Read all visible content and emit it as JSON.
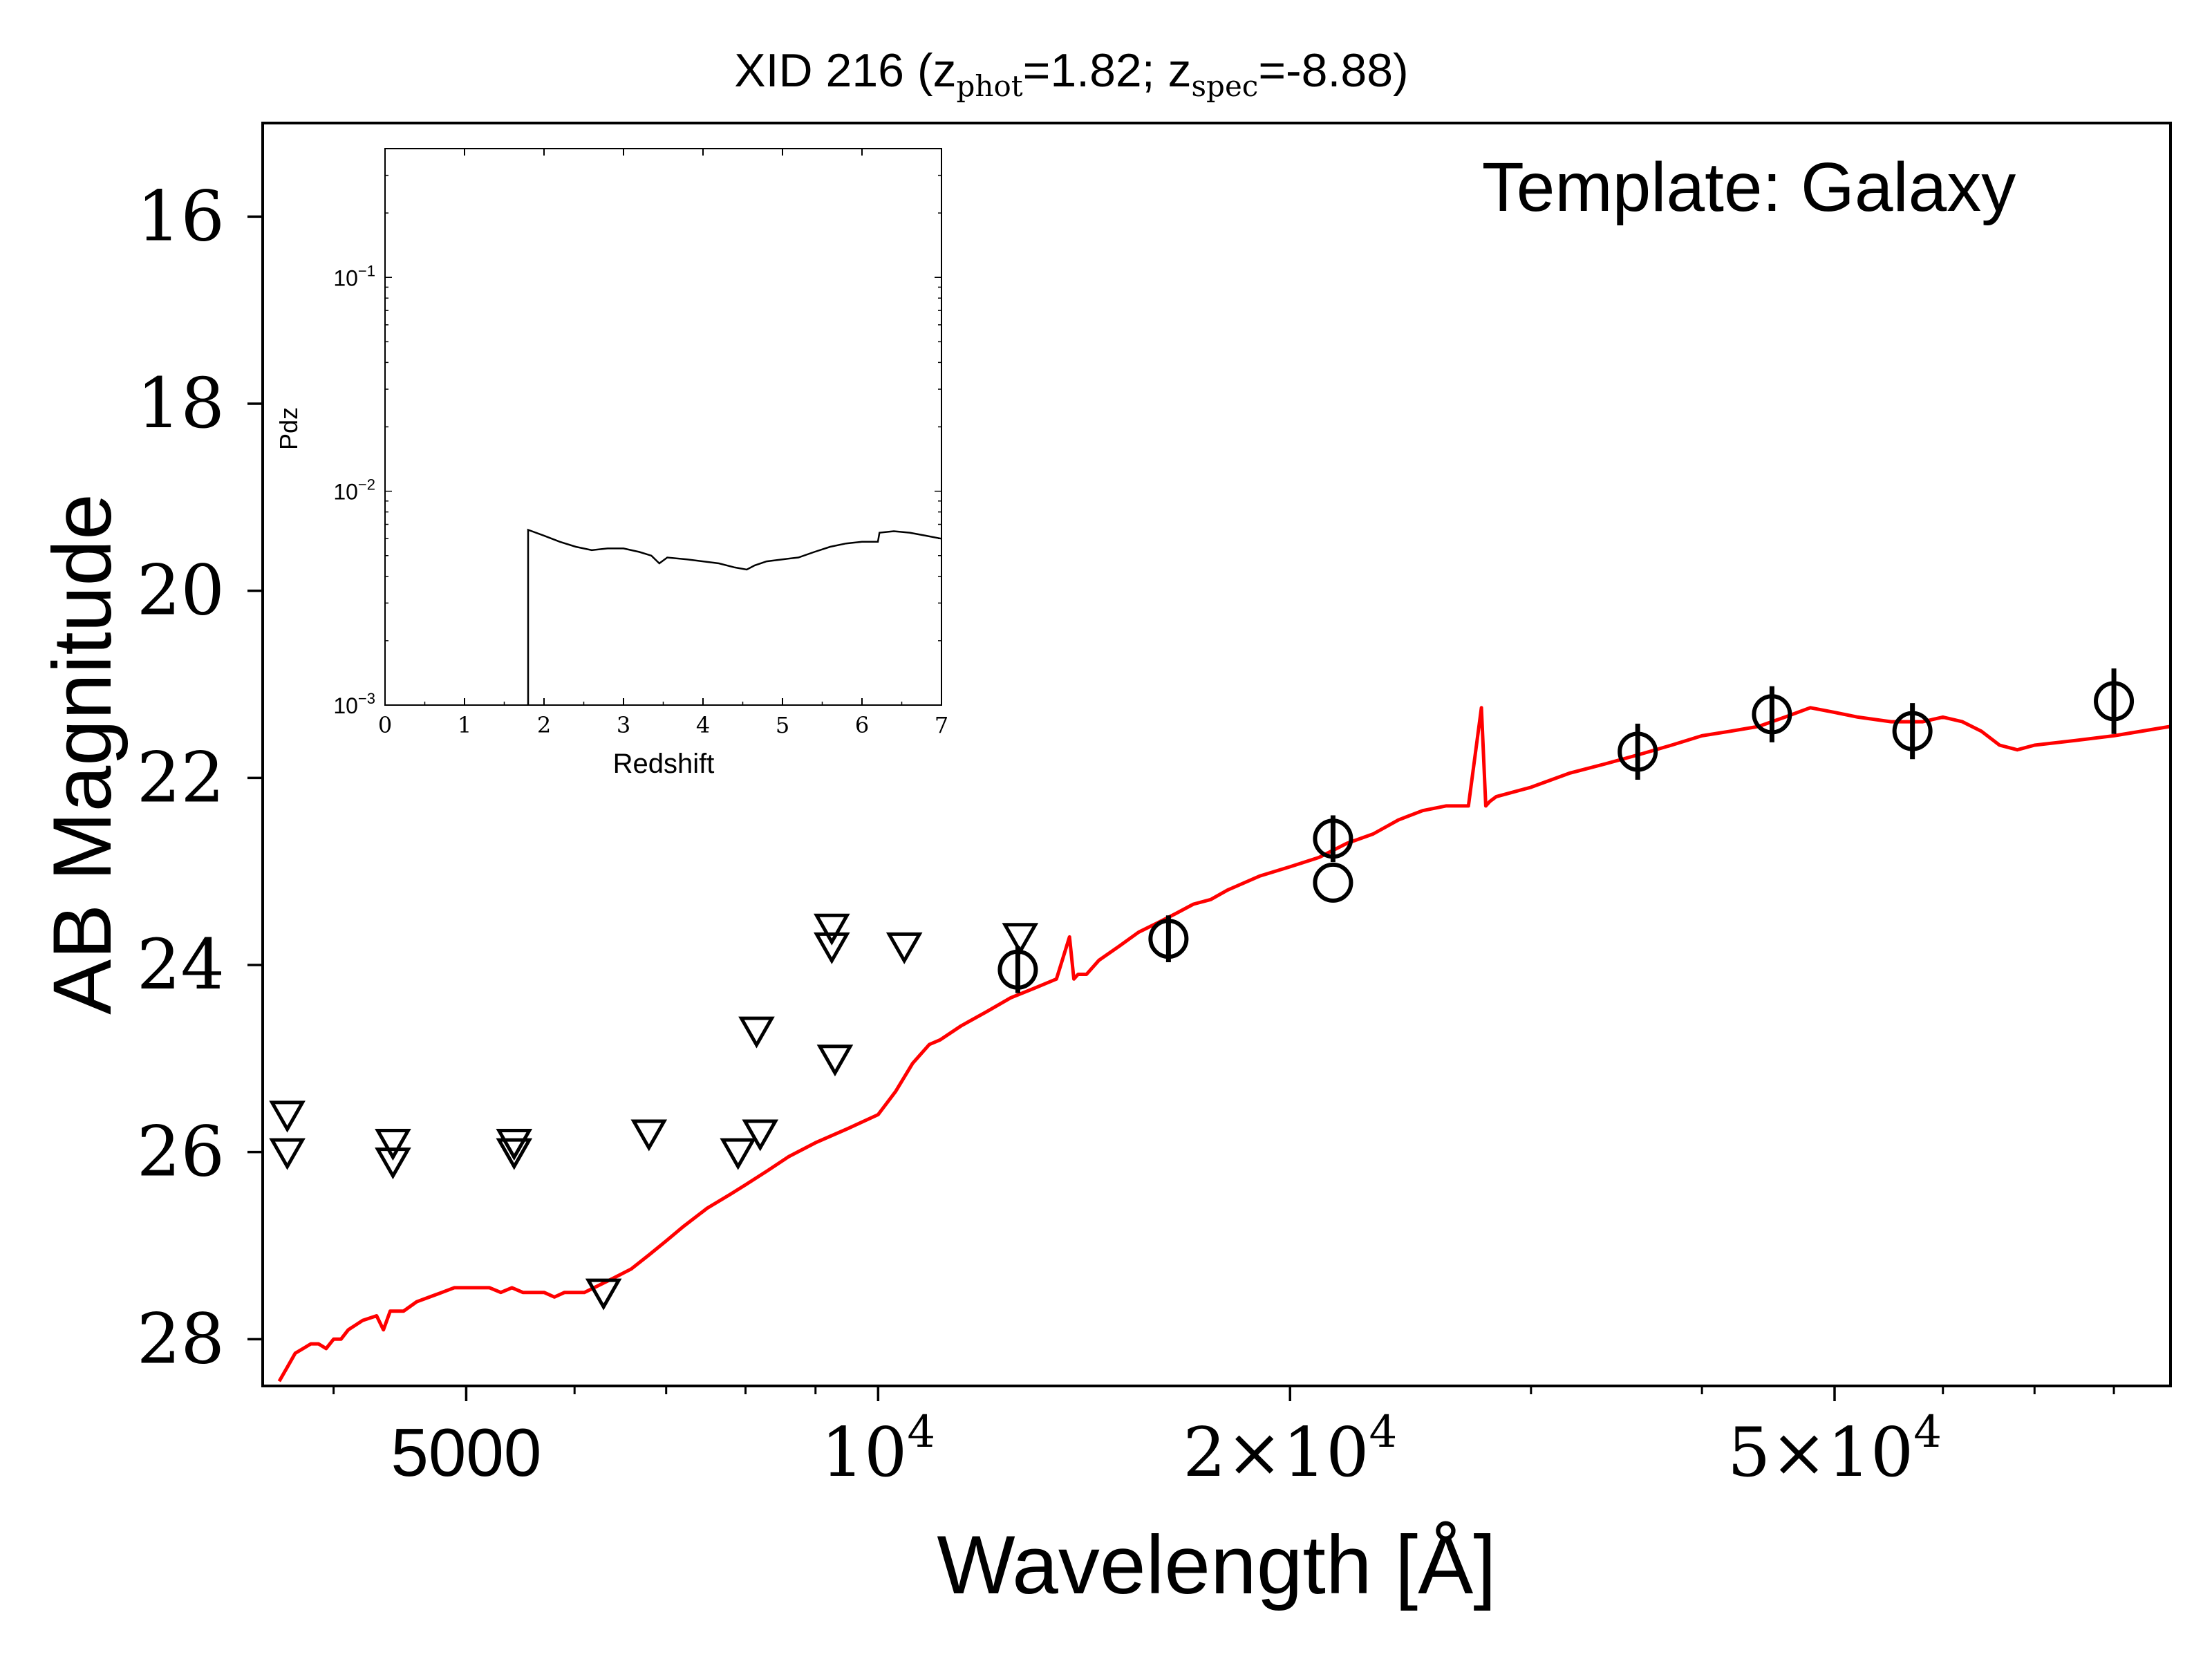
{
  "chart_data": [
    {
      "type": "scatter",
      "title": {
        "prefix": "XID 216 (z",
        "phot_sub": "phot",
        "phot_value": "=1.82; z",
        "spec_sub": "spec",
        "spec_value": "=-8.88)"
      },
      "annotation": "Template: Galaxy",
      "xlabel": "Wavelength [Å]",
      "ylabel": "AB Magnitude",
      "xscale": "log",
      "xlim": [
        3550,
        88000
      ],
      "ylim": [
        28.5,
        15.0
      ],
      "y_inverted": true,
      "x_ticks": [
        {
          "value": 5000,
          "label": "5000"
        },
        {
          "value": 10000,
          "label": "10",
          "sup": "4"
        },
        {
          "value": 20000,
          "label": "2×10",
          "sup": "4"
        },
        {
          "value": 50000,
          "label": "5×10",
          "sup": "4"
        }
      ],
      "y_ticks": [
        16,
        18,
        20,
        22,
        24,
        26,
        28
      ],
      "colors": {
        "template": "#ff0000",
        "points": "#000000"
      },
      "upper_limits": [
        {
          "x": 3700,
          "y": 25.6
        },
        {
          "x": 3700,
          "y": 26.0
        },
        {
          "x": 4420,
          "y": 25.9
        },
        {
          "x": 4420,
          "y": 26.1
        },
        {
          "x": 5420,
          "y": 25.9
        },
        {
          "x": 5420,
          "y": 26.0
        },
        {
          "x": 6300,
          "y": 27.5
        },
        {
          "x": 6800,
          "y": 25.8
        },
        {
          "x": 7900,
          "y": 26.0
        },
        {
          "x": 8200,
          "y": 25.8
        },
        {
          "x": 8150,
          "y": 24.7
        },
        {
          "x": 9250,
          "y": 23.6
        },
        {
          "x": 9250,
          "y": 23.8
        },
        {
          "x": 9300,
          "y": 25.0
        },
        {
          "x": 10450,
          "y": 23.8
        },
        {
          "x": 12700,
          "y": 23.7
        }
      ],
      "detections": [
        {
          "x": 12650,
          "y": 24.05,
          "err": 0.25
        },
        {
          "x": 16300,
          "y": 23.72,
          "err": 0.25
        },
        {
          "x": 21500,
          "y": 22.65,
          "err": 0.25
        },
        {
          "x": 21500,
          "y": 23.12,
          "err": 0.0
        },
        {
          "x": 35900,
          "y": 21.72,
          "err": 0.3
        },
        {
          "x": 45000,
          "y": 21.32,
          "err": 0.3
        },
        {
          "x": 57000,
          "y": 21.5,
          "err": 0.3
        },
        {
          "x": 80000,
          "y": 21.18,
          "err": 0.35
        }
      ],
      "template": {
        "x": [
          3650,
          3700,
          3750,
          3800,
          3850,
          3900,
          3950,
          4000,
          4050,
          4100,
          4200,
          4300,
          4350,
          4400,
          4500,
          4600,
          4700,
          4800,
          4900,
          5000,
          5100,
          5200,
          5300,
          5400,
          5500,
          5600,
          5700,
          5800,
          5900,
          6000,
          6100,
          6200,
          6300,
          6400,
          6600,
          6800,
          7000,
          7200,
          7500,
          7800,
          8000,
          8300,
          8600,
          9000,
          9500,
          10000,
          10300,
          10600,
          10900,
          11100,
          11500,
          12000,
          12500,
          13000,
          13500,
          13800,
          13900,
          14000,
          14200,
          14500,
          15000,
          15500,
          16000,
          16500,
          17000,
          17500,
          18000,
          19000,
          20000,
          21000,
          22000,
          23000,
          24000,
          25000,
          26000,
          27000,
          27600,
          27800,
          28000,
          28300,
          30000,
          32000,
          34000,
          36000,
          38000,
          40000,
          42000,
          44000,
          46000,
          48000,
          50000,
          52000,
          55000,
          58000,
          60000,
          62000,
          64000,
          66000,
          68000,
          70000,
          75000,
          80000,
          88000
        ],
        "y": [
          28.45,
          28.3,
          28.15,
          28.1,
          28.05,
          28.05,
          28.1,
          28.0,
          28.0,
          27.9,
          27.8,
          27.75,
          27.9,
          27.7,
          27.7,
          27.6,
          27.55,
          27.5,
          27.45,
          27.45,
          27.45,
          27.45,
          27.5,
          27.45,
          27.5,
          27.5,
          27.5,
          27.55,
          27.5,
          27.5,
          27.5,
          27.45,
          27.4,
          27.35,
          27.25,
          27.1,
          26.95,
          26.8,
          26.6,
          26.45,
          26.35,
          26.2,
          26.05,
          25.9,
          25.75,
          25.6,
          25.35,
          25.05,
          24.85,
          24.8,
          24.65,
          24.5,
          24.35,
          24.25,
          24.15,
          23.7,
          24.15,
          24.1,
          24.1,
          23.95,
          23.8,
          23.65,
          23.55,
          23.45,
          23.35,
          23.3,
          23.2,
          23.05,
          22.95,
          22.85,
          22.7,
          22.6,
          22.45,
          22.35,
          22.3,
          22.3,
          21.25,
          22.3,
          22.25,
          22.2,
          22.1,
          21.95,
          21.85,
          21.75,
          21.65,
          21.55,
          21.5,
          21.45,
          21.35,
          21.25,
          21.3,
          21.35,
          21.4,
          21.4,
          21.35,
          21.4,
          21.5,
          21.65,
          21.7,
          21.65,
          21.6,
          21.55,
          21.45
        ]
      }
    },
    {
      "type": "line",
      "xlabel": "Redshift",
      "ylabel": "Pdz",
      "yscale": "log",
      "xlim": [
        0,
        7
      ],
      "ylim": [
        0.001,
        0.4
      ],
      "x_ticks": [
        "0",
        "1",
        "2",
        "3",
        "4",
        "5",
        "6",
        "7"
      ],
      "y_ticks": [
        {
          "value": 0.1,
          "label": "10",
          "sup": "−1"
        },
        {
          "value": 0.01,
          "label": "10",
          "sup": "−2"
        },
        {
          "value": 0.001,
          "label": "10",
          "sup": "−3"
        }
      ],
      "series_color": "#000000",
      "x": [
        1.8,
        1.8,
        2.0,
        2.2,
        2.4,
        2.6,
        2.8,
        3.0,
        3.2,
        3.35,
        3.45,
        3.55,
        3.8,
        4.0,
        4.2,
        4.4,
        4.55,
        4.65,
        4.8,
        5.0,
        5.2,
        5.4,
        5.6,
        5.8,
        6.0,
        6.2,
        6.22,
        6.4,
        6.6,
        6.8,
        7.0
      ],
      "y": [
        0.001,
        0.0066,
        0.0062,
        0.0058,
        0.0055,
        0.0053,
        0.0054,
        0.0054,
        0.0052,
        0.005,
        0.0046,
        0.0049,
        0.0048,
        0.0047,
        0.0046,
        0.0044,
        0.0043,
        0.0045,
        0.0047,
        0.0048,
        0.0049,
        0.0052,
        0.0055,
        0.0057,
        0.0058,
        0.0058,
        0.0064,
        0.0065,
        0.0064,
        0.0062,
        0.006
      ]
    }
  ]
}
